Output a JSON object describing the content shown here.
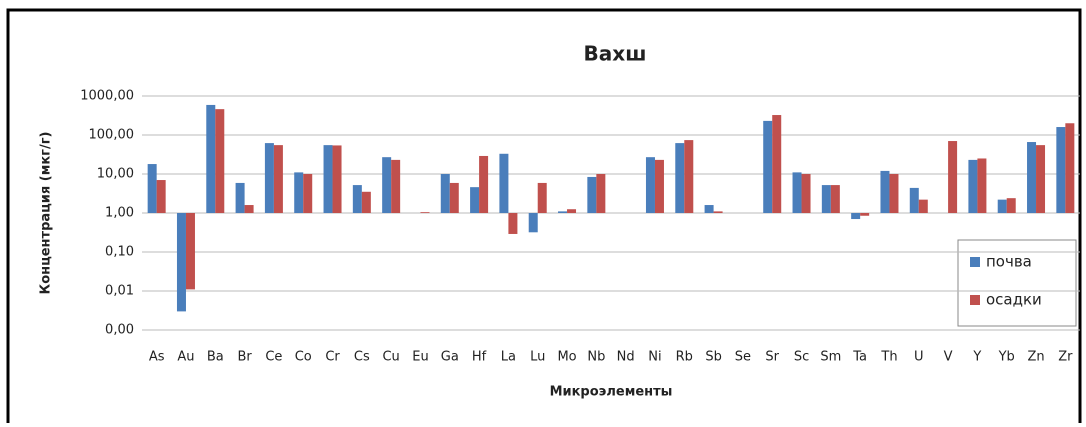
{
  "chart_data": {
    "type": "bar",
    "title": "Вахш",
    "x_label": "Микроэлементы",
    "y_label": "Концентрация (мкг/г)",
    "categories": [
      "As",
      "Au",
      "Ba",
      "Br",
      "Ce",
      "Co",
      "Cr",
      "Cs",
      "Cu",
      "Eu",
      "Ga",
      "Hf",
      "La",
      "Lu",
      "Mo",
      "Nb",
      "Nd",
      "Ni",
      "Rb",
      "Sb",
      "Se",
      "Sr",
      "Sc",
      "Sm",
      "Ta",
      "Th",
      "U",
      "V",
      "Y",
      "Yb",
      "Zn",
      "Zr"
    ],
    "series": [
      {
        "name": "почва",
        "color": "#4a7ebb",
        "values": [
          18,
          0.003,
          590,
          5.9,
          62,
          11,
          55,
          5.2,
          27,
          null,
          10,
          4.6,
          33,
          0.32,
          1.1,
          8.4,
          null,
          27,
          62,
          1.6,
          null,
          230,
          11,
          5.2,
          0.7,
          12,
          4.4,
          null,
          23,
          2.2,
          66,
          160
        ]
      },
      {
        "name": "осадки",
        "color": "#c0504d",
        "values": [
          7,
          0.011,
          460,
          1.6,
          55,
          10,
          54,
          3.5,
          23,
          1.05,
          5.9,
          29,
          0.29,
          5.9,
          1.25,
          10,
          null,
          23,
          74,
          1.1,
          null,
          325,
          10,
          5.2,
          0.85,
          10,
          2.2,
          70,
          25,
          2.4,
          55,
          200
        ]
      }
    ],
    "log_scale": true,
    "ylim": [
      0.001,
      1000
    ],
    "yticks": [
      {
        "value": 0.001,
        "label": "0,00"
      },
      {
        "value": 0.01,
        "label": "0,01"
      },
      {
        "value": 0.1,
        "label": "0,10"
      },
      {
        "value": 1,
        "label": "1,00"
      },
      {
        "value": 10,
        "label": "10,00"
      },
      {
        "value": 100,
        "label": "100,00"
      },
      {
        "value": 1000,
        "label": "1000,00"
      }
    ],
    "grid": true,
    "legend": "right"
  }
}
